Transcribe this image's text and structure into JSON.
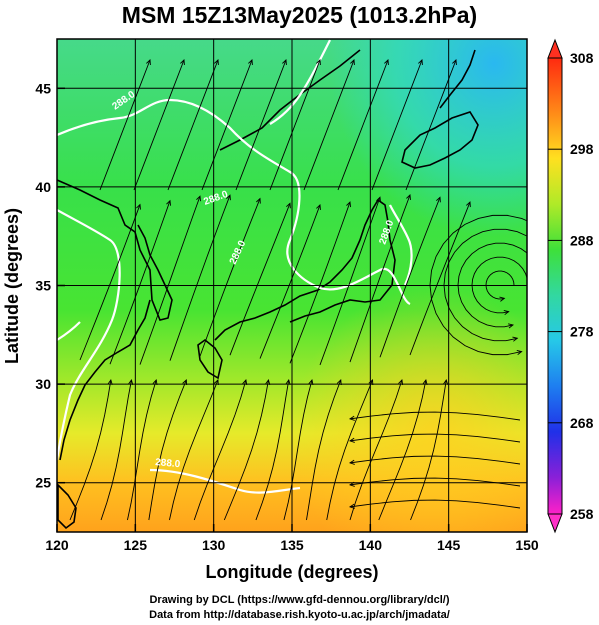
{
  "title": "MSM 15Z13May2025 (1013.2hPa)",
  "x_axis": {
    "label": "Longitude (degrees)",
    "ticks": [
      "120",
      "125",
      "130",
      "135",
      "140",
      "145",
      "150"
    ],
    "range": [
      120,
      150
    ]
  },
  "y_axis": {
    "label": "Latitude  (degrees)",
    "ticks": [
      "25",
      "30",
      "35",
      "40",
      "45"
    ],
    "range": [
      22.5,
      47.5
    ]
  },
  "colorbar": {
    "min": 258,
    "max": 308,
    "ticks": [
      "308",
      "298",
      "288",
      "278",
      "268",
      "258"
    ]
  },
  "contour_labels": [
    "288.0",
    "288.0",
    "288.0",
    "288.0",
    "288.0"
  ],
  "footer": {
    "line1": "Drawing by DCL (https://www.gfd-dennou.org/library/dcl/)",
    "line2": "Data from http://database.rish.kyoto-u.ac.jp/arch/jmadata/"
  },
  "colors": {
    "field_cool": "#2fe0b8",
    "field_mid": "#33dd4c",
    "field_warm": "#ffb020",
    "contour": "#ffffff",
    "streamline": "#000000"
  }
}
